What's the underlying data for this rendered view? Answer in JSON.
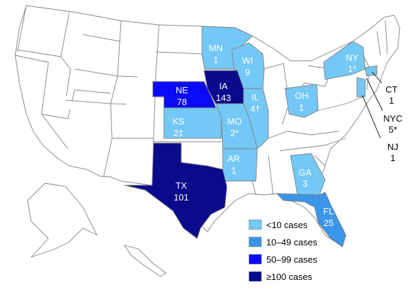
{
  "legend": {
    "items": [
      {
        "label": "<10 cases",
        "color": "#73C8F5"
      },
      {
        "label": "10–49 cases",
        "color": "#3A96E8"
      },
      {
        "label": "50–99 cases",
        "color": "#0A0AF5"
      },
      {
        "label": "≥100 cases",
        "color": "#0A0A8C"
      }
    ]
  },
  "states": {
    "MN": {
      "abbr": "MN",
      "count": "1"
    },
    "WI": {
      "abbr": "WI",
      "count": "9"
    },
    "IA": {
      "abbr": "IA",
      "count": "143"
    },
    "NE": {
      "abbr": "NE",
      "count": "78"
    },
    "KS": {
      "abbr": "KS",
      "count": "2‡"
    },
    "MO": {
      "abbr": "MO",
      "count": "2*"
    },
    "IL": {
      "abbr": "IL",
      "count": "4†"
    },
    "OH": {
      "abbr": "OH",
      "count": "1"
    },
    "NY": {
      "abbr": "NY",
      "count": "1*"
    },
    "AR": {
      "abbr": "AR",
      "count": "1"
    },
    "GA": {
      "abbr": "GA",
      "count": "3"
    },
    "TX": {
      "abbr": "TX",
      "count": "101"
    },
    "FL": {
      "abbr": "FL",
      "count": "25"
    }
  },
  "callouts": {
    "CT": {
      "abbr": "CT",
      "count": "1"
    },
    "NYC": {
      "abbr": "NYC",
      "count": "5*"
    },
    "NJ": {
      "abbr": "NJ",
      "count": "1"
    }
  }
}
